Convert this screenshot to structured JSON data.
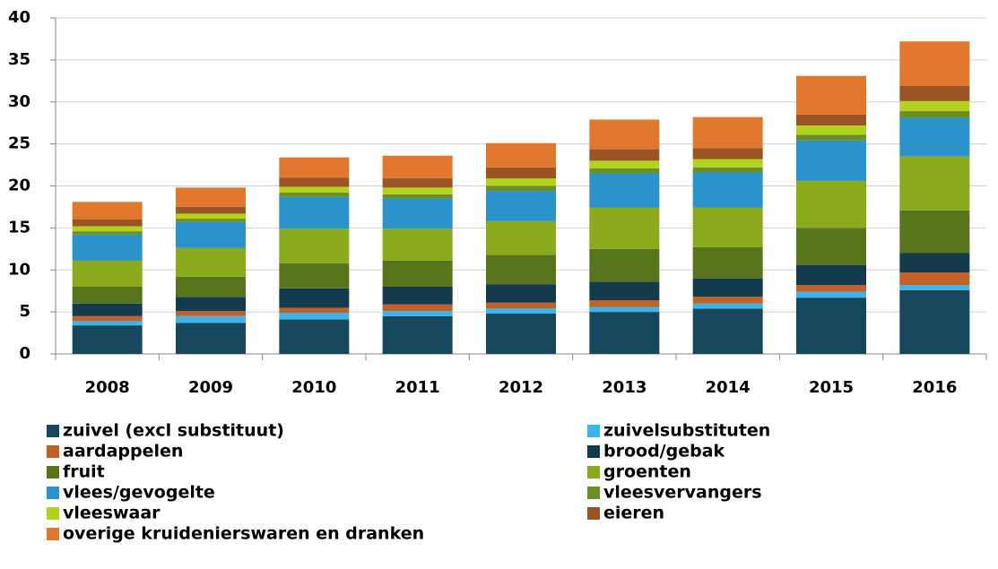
{
  "chart_data": {
    "type": "stacked_bar",
    "categories": [
      "2008",
      "2009",
      "2010",
      "2011",
      "2012",
      "2013",
      "2014",
      "2015",
      "2016"
    ],
    "series": [
      {
        "name": "zuivel (excl substituut)",
        "color": "#17475d",
        "values": [
          3.4,
          3.7,
          4.1,
          4.5,
          4.8,
          5.0,
          5.4,
          6.7,
          7.6
        ]
      },
      {
        "name": "zuivelsubstituten",
        "color": "#3cb4ea",
        "values": [
          0.5,
          0.8,
          0.8,
          0.6,
          0.6,
          0.6,
          0.6,
          0.7,
          0.6
        ]
      },
      {
        "name": "aardappelen",
        "color": "#c2602a",
        "values": [
          0.6,
          0.6,
          0.6,
          0.8,
          0.7,
          0.8,
          0.8,
          0.8,
          1.5
        ]
      },
      {
        "name": "brood/gebak",
        "color": "#143a4e",
        "values": [
          1.5,
          1.7,
          2.3,
          2.1,
          2.2,
          2.2,
          2.2,
          2.4,
          2.3
        ]
      },
      {
        "name": "fruit",
        "color": "#58751c",
        "values": [
          2.0,
          2.4,
          3.0,
          3.1,
          3.5,
          3.9,
          3.7,
          4.4,
          5.1
        ]
      },
      {
        "name": "groenten",
        "color": "#8aaa1c",
        "values": [
          3.1,
          3.4,
          4.1,
          3.8,
          4.0,
          4.9,
          4.7,
          5.6,
          6.4
        ]
      },
      {
        "name": "vlees/gevogelte",
        "color": "#2a93c9",
        "values": [
          3.1,
          3.1,
          3.8,
          3.6,
          3.6,
          4.1,
          4.2,
          4.8,
          4.6
        ]
      },
      {
        "name": "vleesvervangers",
        "color": "#6b8f26",
        "values": [
          0.4,
          0.4,
          0.5,
          0.5,
          0.6,
          0.6,
          0.6,
          0.7,
          0.8
        ]
      },
      {
        "name": "vleeswaar",
        "color": "#b2d21e",
        "values": [
          0.6,
          0.6,
          0.7,
          0.8,
          0.9,
          0.9,
          1.0,
          1.1,
          1.2
        ]
      },
      {
        "name": "eieren",
        "color": "#9a5426",
        "values": [
          0.8,
          0.8,
          1.1,
          1.1,
          1.3,
          1.4,
          1.3,
          1.3,
          1.8
        ]
      },
      {
        "name": "overige kruidenierswaren en dranken",
        "color": "#e0782e",
        "values": [
          2.1,
          2.3,
          2.4,
          2.7,
          2.9,
          3.5,
          3.7,
          4.6,
          5.3
        ]
      }
    ],
    "ylim": [
      0,
      40
    ],
    "yticks": [
      0,
      5,
      10,
      15,
      20,
      25,
      30,
      35,
      40
    ],
    "grid": true,
    "legend": "bottom"
  }
}
